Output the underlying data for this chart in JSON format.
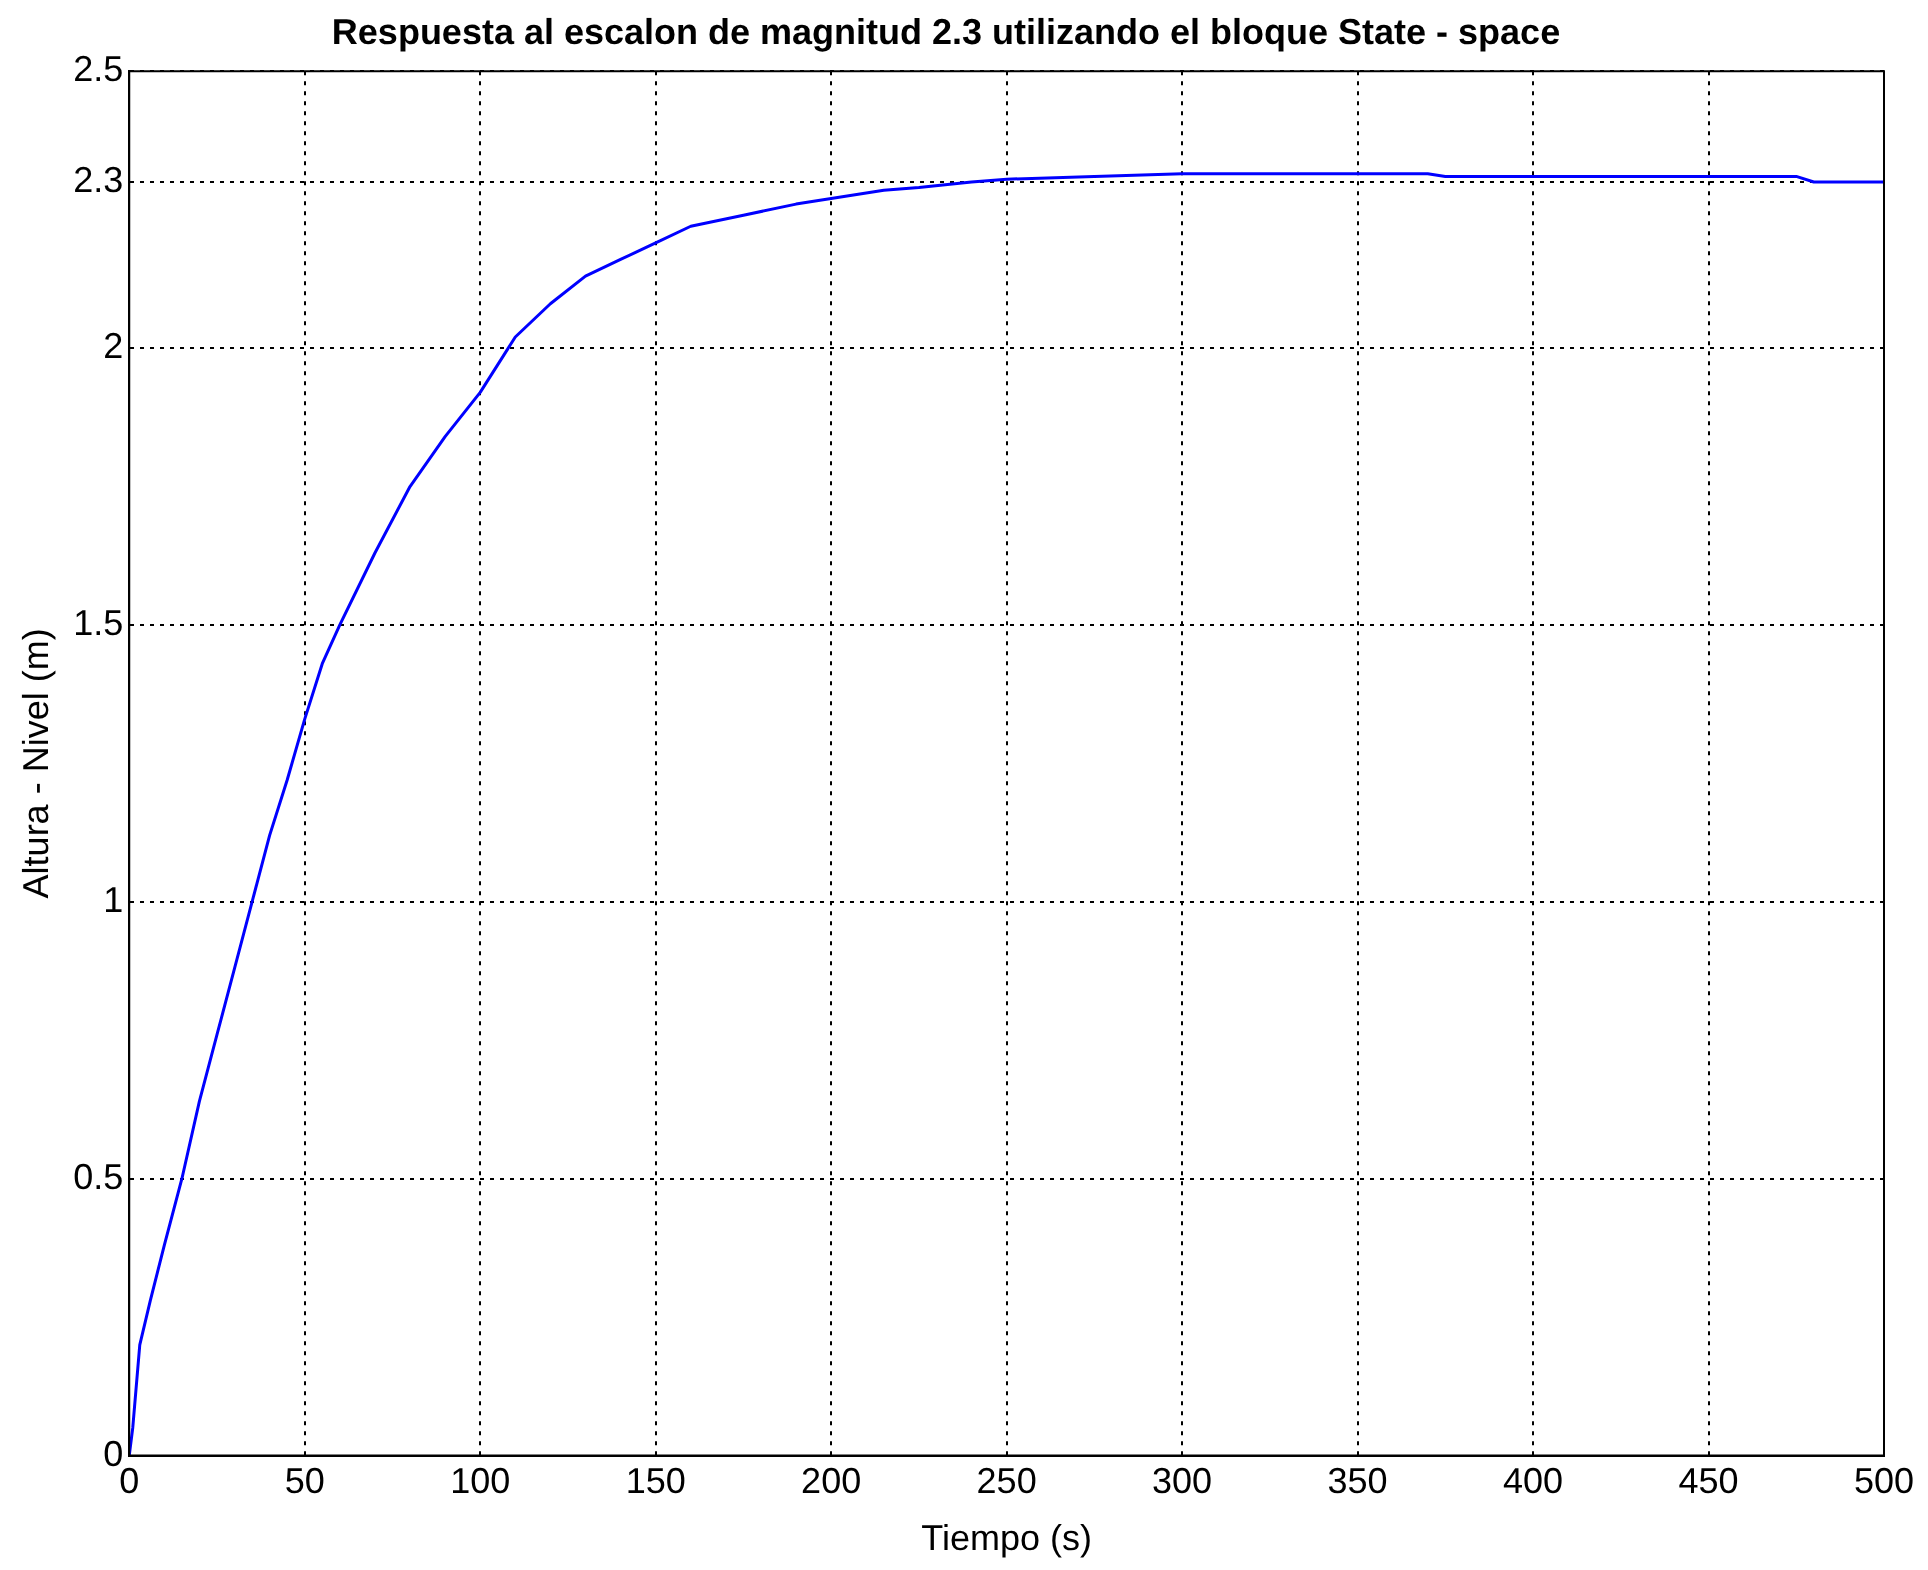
{
  "chart_data": {
    "type": "line",
    "title": "Respuesta al escalon de magnitud 2.3 utilizando el bloque State - space",
    "xlabel": "Tiempo (s)",
    "ylabel": "Altura - Nivel (m)",
    "x": [
      0,
      1,
      3,
      6,
      10,
      15,
      20,
      25,
      30,
      35,
      40,
      45,
      50,
      55,
      60,
      70,
      80,
      90,
      100,
      110,
      120,
      130,
      140,
      150,
      160,
      175,
      190,
      200,
      215,
      225,
      240,
      250,
      275,
      300,
      330,
      370,
      375,
      420,
      475,
      480,
      500
    ],
    "series": [
      {
        "color": "#0000ff",
        "values": [
          0,
          0.05,
          0.2,
          0.28,
          0.38,
          0.5,
          0.64,
          0.76,
          0.88,
          1.0,
          1.12,
          1.22,
          1.33,
          1.43,
          1.5,
          1.63,
          1.75,
          1.84,
          1.92,
          2.02,
          2.08,
          2.13,
          2.16,
          2.19,
          2.22,
          2.24,
          2.26,
          2.27,
          2.285,
          2.29,
          2.3,
          2.305,
          2.31,
          2.315,
          2.315,
          2.315,
          2.31,
          2.31,
          2.31,
          2.3,
          2.3
        ]
      }
    ],
    "xlim": [
      0,
      500
    ],
    "xticks": [
      0,
      50,
      100,
      150,
      200,
      250,
      300,
      350,
      400,
      450,
      500
    ],
    "ylim": [
      0,
      2.5
    ],
    "yticks": [
      0,
      0.5,
      1,
      1.5,
      2,
      2.3,
      2.5
    ],
    "grid": true,
    "legend": false,
    "marker": "none",
    "line_style": "solid"
  }
}
